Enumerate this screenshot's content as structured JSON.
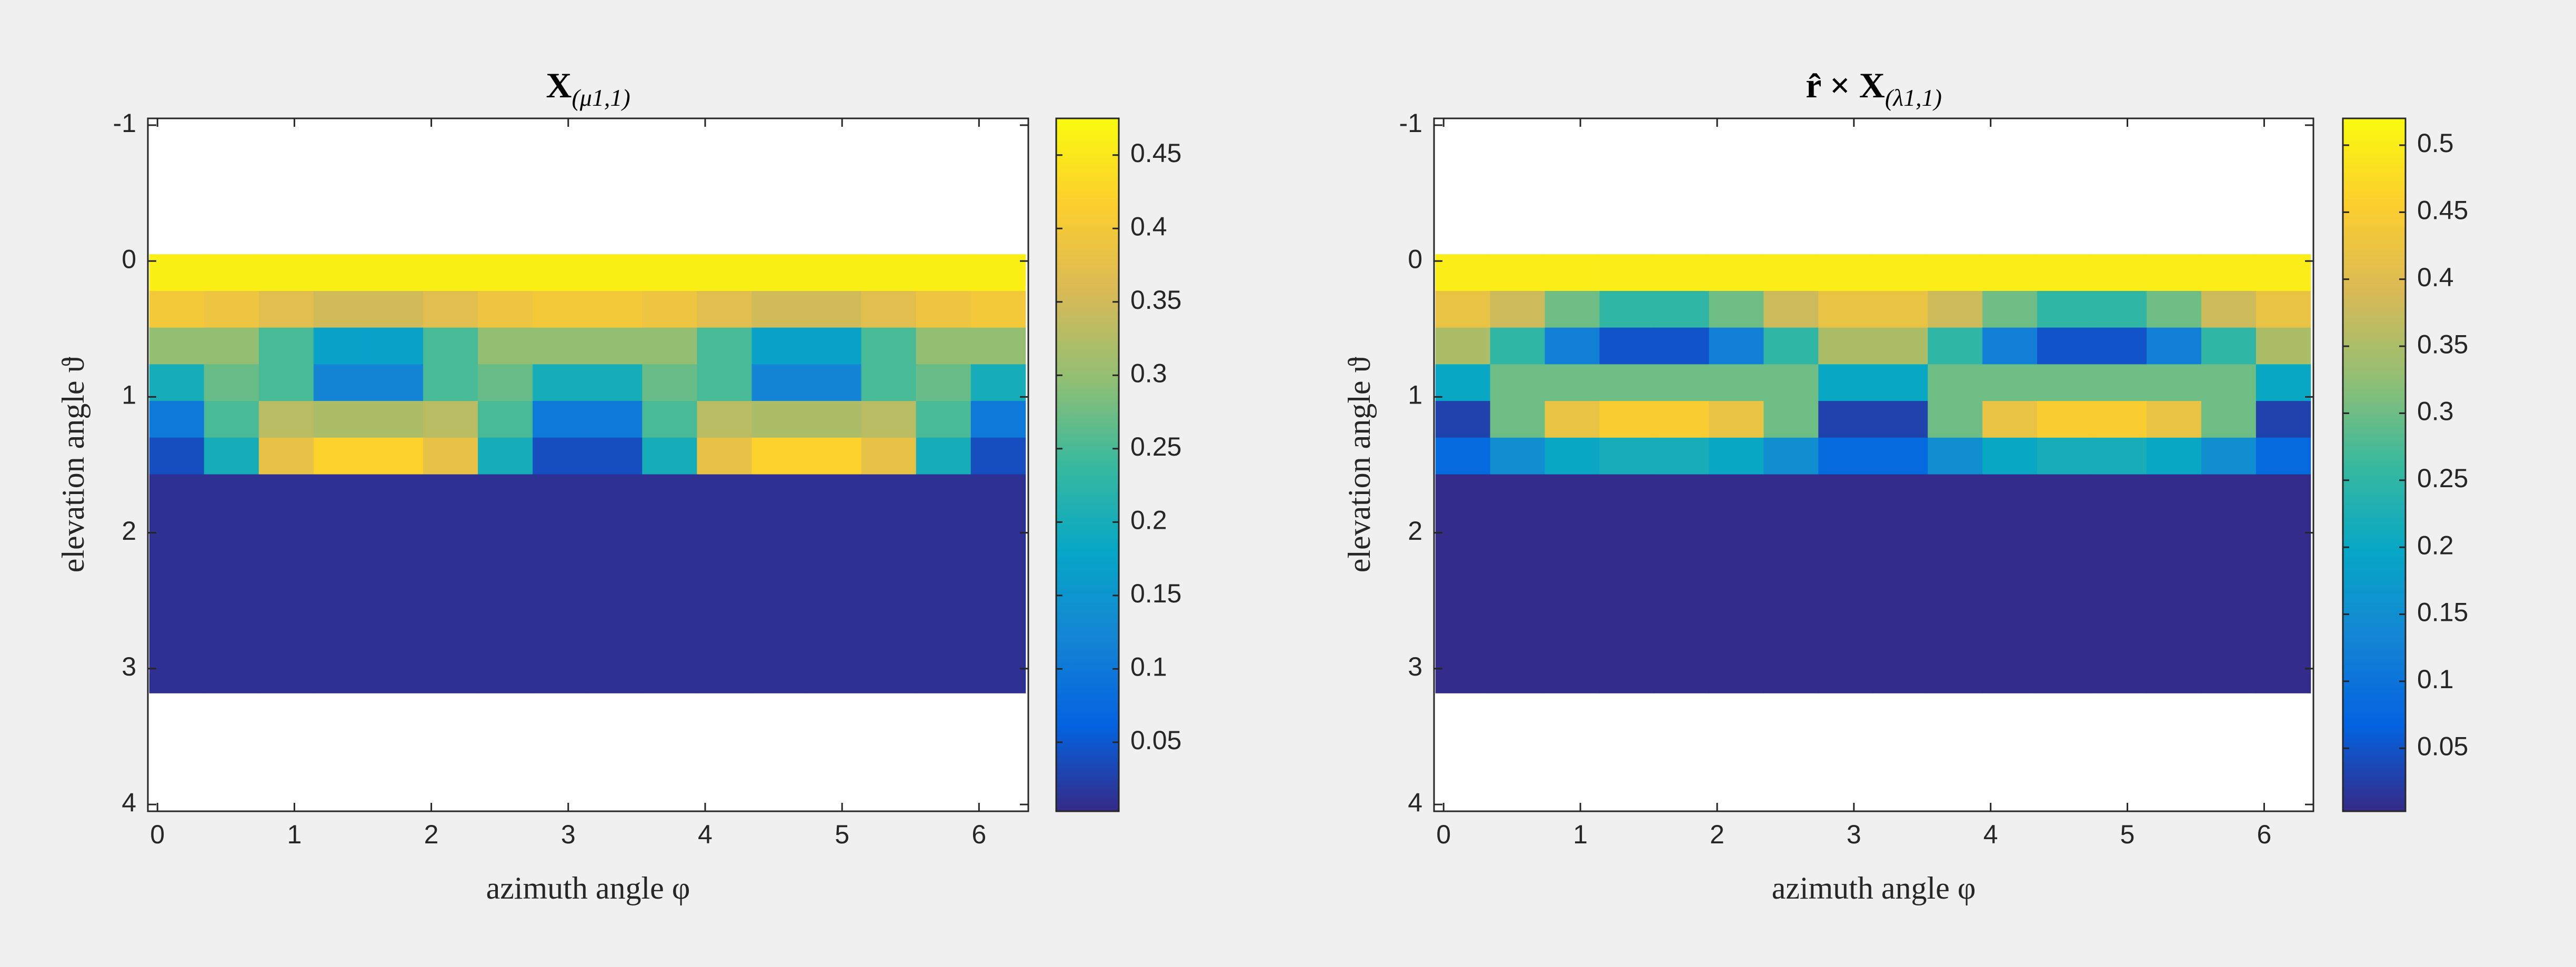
{
  "chart_data": [
    {
      "type": "heatmap",
      "title": {
        "main": "X",
        "sub": "(μ1,1)"
      },
      "x_label": "azimuth angle φ",
      "y_label": "elevation angle ϑ",
      "xlim": [
        -0.07,
        6.36
      ],
      "ylim": [
        -1.05,
        4.05
      ],
      "y_reversed": true,
      "xticks": [
        0,
        1,
        2,
        3,
        4,
        5,
        6
      ],
      "yticks": [
        -1,
        0,
        1,
        2,
        3,
        4
      ],
      "x_edges": [
        -0.06,
        0.34,
        0.74,
        1.14,
        1.54,
        1.94,
        2.34,
        2.74,
        3.14,
        3.54,
        3.94,
        4.34,
        4.74,
        5.14,
        5.54,
        5.94,
        6.34
      ],
      "y_edges": [
        -0.05,
        0.22,
        0.49,
        0.76,
        1.03,
        1.3,
        1.57,
        3.18
      ],
      "z": [
        [
          0.46,
          0.46,
          0.46,
          0.46,
          0.46,
          0.46,
          0.46,
          0.46,
          0.46,
          0.46,
          0.46,
          0.46,
          0.46,
          0.46,
          0.46,
          0.46
        ],
        [
          0.4,
          0.39,
          0.37,
          0.35,
          0.35,
          0.37,
          0.39,
          0.4,
          0.4,
          0.39,
          0.37,
          0.35,
          0.35,
          0.37,
          0.39,
          0.4
        ],
        [
          0.3,
          0.3,
          0.25,
          0.17,
          0.17,
          0.25,
          0.3,
          0.3,
          0.3,
          0.3,
          0.25,
          0.17,
          0.17,
          0.25,
          0.3,
          0.3
        ],
        [
          0.2,
          0.27,
          0.25,
          0.12,
          0.12,
          0.25,
          0.27,
          0.2,
          0.2,
          0.27,
          0.25,
          0.12,
          0.12,
          0.25,
          0.27,
          0.2
        ],
        [
          0.1,
          0.25,
          0.33,
          0.32,
          0.32,
          0.33,
          0.25,
          0.1,
          0.1,
          0.25,
          0.33,
          0.32,
          0.32,
          0.33,
          0.25,
          0.1
        ],
        [
          0.04,
          0.2,
          0.38,
          0.42,
          0.42,
          0.38,
          0.2,
          0.04,
          0.04,
          0.2,
          0.38,
          0.42,
          0.42,
          0.38,
          0.2,
          0.04
        ],
        [
          0.01,
          0.01,
          0.01,
          0.01,
          0.01,
          0.01,
          0.01,
          0.01,
          0.01,
          0.01,
          0.01,
          0.01,
          0.01,
          0.01,
          0.01,
          0.01
        ]
      ],
      "clim": [
        0.003,
        0.475
      ],
      "cticks": [
        0.05,
        0.1,
        0.15,
        0.2,
        0.25,
        0.3,
        0.35,
        0.4,
        0.45
      ],
      "colormap": [
        "#352a87",
        "#0363e1",
        "#1485d4",
        "#06a7c6",
        "#38b99e",
        "#92bf73",
        "#d9ba56",
        "#fcce2e",
        "#f9fb0e"
      ]
    },
    {
      "type": "heatmap",
      "title": {
        "main": "r̂ × X",
        "sub": "(λ1,1)"
      },
      "x_label": "azimuth angle φ",
      "y_label": "elevation angle ϑ",
      "xlim": [
        -0.07,
        6.36
      ],
      "ylim": [
        -1.05,
        4.05
      ],
      "y_reversed": true,
      "xticks": [
        0,
        1,
        2,
        3,
        4,
        5,
        6
      ],
      "yticks": [
        -1,
        0,
        1,
        2,
        3,
        4
      ],
      "x_edges": [
        -0.06,
        0.34,
        0.74,
        1.14,
        1.54,
        1.94,
        2.34,
        2.74,
        3.14,
        3.54,
        3.94,
        4.34,
        4.74,
        5.14,
        5.54,
        5.94,
        6.34
      ],
      "y_edges": [
        -0.05,
        0.22,
        0.49,
        0.76,
        1.03,
        1.3,
        1.57,
        3.18
      ],
      "z": [
        [
          0.5,
          0.5,
          0.5,
          0.5,
          0.5,
          0.5,
          0.5,
          0.5,
          0.5,
          0.5,
          0.5,
          0.5,
          0.5,
          0.5,
          0.5,
          0.5
        ],
        [
          0.42,
          0.38,
          0.3,
          0.25,
          0.25,
          0.3,
          0.38,
          0.42,
          0.42,
          0.38,
          0.3,
          0.25,
          0.25,
          0.3,
          0.38,
          0.42
        ],
        [
          0.35,
          0.25,
          0.12,
          0.05,
          0.05,
          0.12,
          0.25,
          0.35,
          0.35,
          0.25,
          0.12,
          0.05,
          0.05,
          0.12,
          0.25,
          0.35
        ],
        [
          0.2,
          0.3,
          0.3,
          0.3,
          0.3,
          0.3,
          0.3,
          0.2,
          0.2,
          0.3,
          0.3,
          0.3,
          0.3,
          0.3,
          0.3,
          0.2
        ],
        [
          0.03,
          0.3,
          0.42,
          0.45,
          0.45,
          0.42,
          0.3,
          0.03,
          0.03,
          0.3,
          0.42,
          0.45,
          0.45,
          0.42,
          0.3,
          0.03
        ],
        [
          0.08,
          0.15,
          0.2,
          0.22,
          0.22,
          0.2,
          0.15,
          0.08,
          0.08,
          0.15,
          0.2,
          0.22,
          0.22,
          0.2,
          0.15,
          0.08
        ],
        [
          0.005,
          0.005,
          0.005,
          0.005,
          0.005,
          0.005,
          0.005,
          0.005,
          0.005,
          0.005,
          0.005,
          0.005,
          0.005,
          0.005,
          0.005,
          0.005
        ]
      ],
      "clim": [
        0.003,
        0.52
      ],
      "cticks": [
        0.05,
        0.1,
        0.15,
        0.2,
        0.25,
        0.3,
        0.35,
        0.4,
        0.45,
        0.5
      ],
      "colormap": [
        "#352a87",
        "#0363e1",
        "#1485d4",
        "#06a7c6",
        "#38b99e",
        "#92bf73",
        "#d9ba56",
        "#fcce2e",
        "#f9fb0e"
      ]
    }
  ]
}
